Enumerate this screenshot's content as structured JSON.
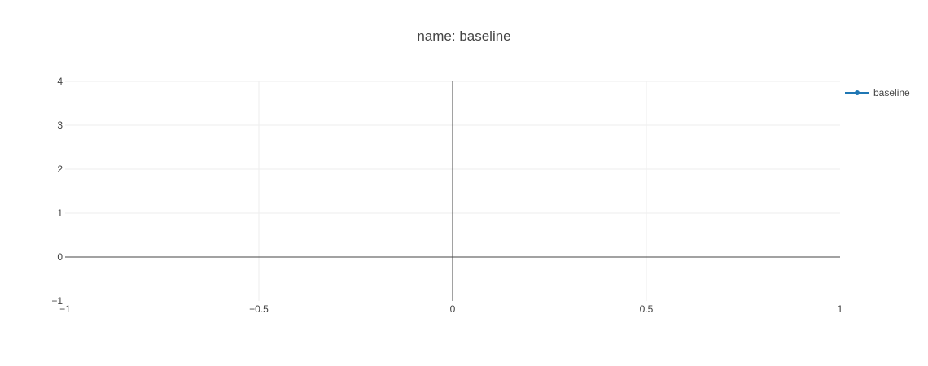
{
  "chart_data": {
    "type": "line",
    "title": "name: baseline",
    "xlabel": "",
    "ylabel": "",
    "xlim": [
      -1,
      1
    ],
    "ylim": [
      -1,
      4
    ],
    "x_ticks": [
      -1,
      -0.5,
      0,
      0.5,
      1
    ],
    "x_tick_labels": [
      "−1",
      "−0.5",
      "0",
      "0.5",
      "1"
    ],
    "y_ticks": [
      -1,
      0,
      1,
      2,
      3,
      4
    ],
    "y_tick_labels": [
      "−1",
      "0",
      "1",
      "2",
      "3",
      "4"
    ],
    "grid": true,
    "legend_position": "top-right",
    "series": [
      {
        "name": "baseline",
        "color": "#1f77b4",
        "mode": "lines+markers",
        "x": [],
        "y": []
      }
    ]
  }
}
